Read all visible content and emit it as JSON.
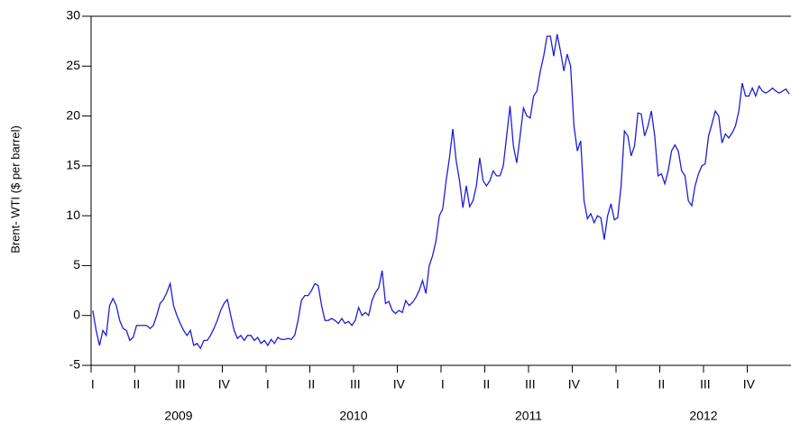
{
  "chart_data": {
    "type": "line",
    "ylabel": "Brent- WTI ($ per barrel)",
    "years": [
      "2009",
      "2010",
      "2011",
      "2012"
    ],
    "categories": [
      "I",
      null,
      null,
      null,
      null,
      null,
      null,
      null,
      null,
      null,
      null,
      null,
      null,
      "II",
      null,
      null,
      null,
      null,
      null,
      null,
      null,
      null,
      null,
      null,
      null,
      null,
      "III",
      null,
      null,
      null,
      null,
      null,
      null,
      null,
      null,
      null,
      null,
      null,
      null,
      "IV",
      null,
      null,
      null,
      null,
      null,
      null,
      null,
      null,
      null,
      null,
      null,
      null,
      "I",
      null,
      null,
      null,
      null,
      null,
      null,
      null,
      null,
      null,
      null,
      null,
      null,
      "II",
      null,
      null,
      null,
      null,
      null,
      null,
      null,
      null,
      null,
      null,
      null,
      null,
      "III",
      null,
      null,
      null,
      null,
      null,
      null,
      null,
      null,
      null,
      null,
      null,
      null,
      "IV",
      null,
      null,
      null,
      null,
      null,
      null,
      null,
      null,
      null,
      null,
      null,
      null,
      "I",
      null,
      null,
      null,
      null,
      null,
      null,
      null,
      null,
      null,
      null,
      null,
      null,
      "II",
      null,
      null,
      null,
      null,
      null,
      null,
      null,
      null,
      null,
      null,
      null,
      null,
      "III",
      null,
      null,
      null,
      null,
      null,
      null,
      null,
      null,
      null,
      null,
      null,
      null,
      "IV",
      null,
      null,
      null,
      null,
      null,
      null,
      null,
      null,
      null,
      null,
      null,
      null,
      "I",
      null,
      null,
      null,
      null,
      null,
      null,
      null,
      null,
      null,
      null,
      null,
      null,
      "II",
      null,
      null,
      null,
      null,
      null,
      null,
      null,
      null,
      null,
      null,
      null,
      null,
      "III",
      null,
      null,
      null,
      null,
      null,
      null,
      null,
      null,
      null,
      null,
      null,
      null,
      "IV",
      null,
      null,
      null,
      null,
      null,
      null,
      null,
      null,
      null,
      null,
      null,
      null
    ],
    "values": [
      0.5,
      -1.5,
      -3,
      -1.5,
      -2,
      1,
      1.7,
      1,
      -0.5,
      -1.3,
      -1.5,
      -2.5,
      -2.2,
      -1,
      -1,
      -1,
      -1,
      -1.3,
      -1,
      0,
      1.2,
      1.6,
      2.3,
      3.2,
      1,
      0,
      -0.8,
      -1.5,
      -2,
      -1.5,
      -3,
      -2.8,
      -3.3,
      -2.5,
      -2.5,
      -2,
      -1.3,
      -0.5,
      0.5,
      1.2,
      1.6,
      0,
      -1.5,
      -2.3,
      -2,
      -2.5,
      -2,
      -2,
      -2.5,
      -2.2,
      -2.8,
      -2.5,
      -3,
      -2.4,
      -2.8,
      -2.2,
      -2.4,
      -2.4,
      -2.3,
      -2.4,
      -2,
      -0.5,
      1.5,
      2,
      2,
      2.5,
      3.2,
      3,
      1,
      -0.5,
      -0.5,
      -0.3,
      -0.5,
      -0.8,
      -0.3,
      -0.8,
      -0.6,
      -1,
      -0.5,
      0.8,
      0,
      0.3,
      0,
      1.5,
      2.3,
      2.8,
      4.5,
      1.2,
      1.4,
      0.5,
      0.2,
      0.5,
      0.3,
      1.5,
      1,
      1.3,
      1.8,
      2.5,
      3.5,
      2.2,
      5,
      6,
      7.5,
      10,
      10.7,
      13.5,
      15.8,
      18.7,
      15.5,
      13.5,
      10.8,
      13,
      10.9,
      11.5,
      13,
      15.8,
      13.5,
      13,
      13.5,
      14.5,
      14,
      14,
      15,
      18,
      21,
      17,
      15.3,
      18,
      20.8,
      20,
      19.8,
      22,
      22.5,
      24.5,
      26,
      28,
      28,
      26,
      28.2,
      26.5,
      24.5,
      26.2,
      25,
      19,
      16.5,
      17.5,
      11.5,
      9.7,
      10.2,
      9.3,
      10,
      9.8,
      7.6,
      10,
      11.2,
      9.6,
      9.8,
      13,
      18.5,
      18,
      16,
      17,
      20.3,
      20.2,
      18,
      19,
      20.5,
      18,
      14,
      14.2,
      13.2,
      14.5,
      16.5,
      17.1,
      16.5,
      14.5,
      14,
      11.5,
      11,
      13,
      14.2,
      15,
      15.2,
      18,
      19.2,
      20.5,
      20,
      17.3,
      18.2,
      17.8,
      18.3,
      19,
      20.5,
      23.3,
      22,
      22,
      22.8,
      22,
      23,
      22.5,
      22.3,
      22.5,
      22.8,
      22.5,
      22.3,
      22.5,
      22.7,
      22.2
    ],
    "color": "#1f1fd6",
    "ylim": [
      -5,
      30
    ],
    "yticks": [
      -5,
      0,
      5,
      10,
      15,
      20,
      25,
      30
    ],
    "grid": false
  }
}
